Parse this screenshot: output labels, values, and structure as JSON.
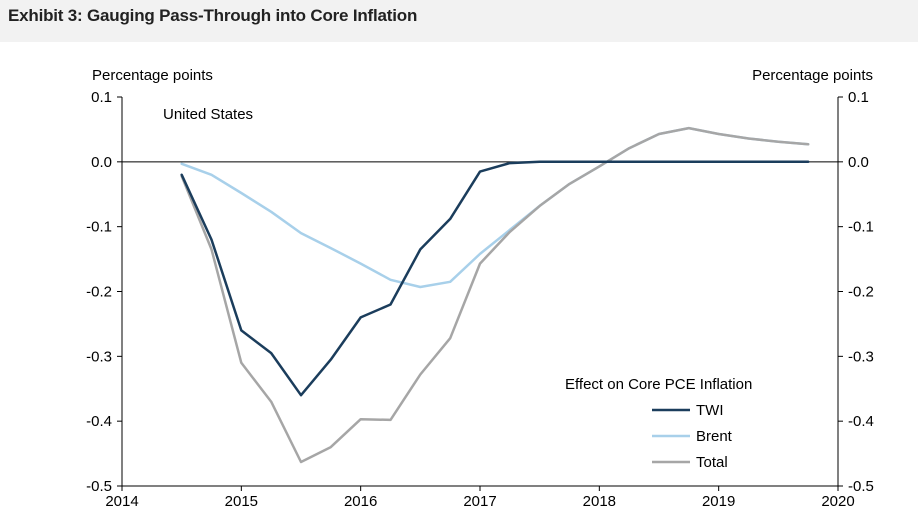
{
  "title": "Exhibit 3: Gauging Pass-Through into Core Inflation",
  "colors": {
    "twi": "#1b3d5c",
    "brent": "#a8d0ea",
    "total": "#a6a6a6",
    "axis": "#000000"
  },
  "chart_data": {
    "type": "line",
    "title": "Exhibit 3: Gauging Pass-Through into Core Inflation",
    "subtitle": "United States",
    "ylabel_left": "Percentage points",
    "ylabel_right": "Percentage points",
    "xlabel": "",
    "xlim": [
      2014,
      2020
    ],
    "ylim": [
      -0.5,
      0.1
    ],
    "xticks": [
      2014,
      2015,
      2016,
      2017,
      2018,
      2019,
      2020
    ],
    "yticks": [
      0.1,
      0.0,
      -0.1,
      -0.2,
      -0.3,
      -0.4,
      -0.5
    ],
    "ytick_labels": [
      "0.1",
      "0.0",
      "-0.1",
      "-0.2",
      "-0.3",
      "-0.4",
      "-0.5"
    ],
    "legend_title": "Effect on Core PCE Inflation",
    "legend_position": "bottom-right",
    "grid": false,
    "x": [
      2014.5,
      2014.75,
      2015.0,
      2015.25,
      2015.5,
      2015.75,
      2016.0,
      2016.25,
      2016.5,
      2016.75,
      2017.0,
      2017.25,
      2017.5,
      2017.75,
      2018.0,
      2018.25,
      2018.5,
      2018.75,
      2019.0,
      2019.25,
      2019.5,
      2019.75
    ],
    "series": [
      {
        "name": "TWI",
        "key": "twi",
        "values": [
          -0.02,
          -0.12,
          -0.26,
          -0.295,
          -0.36,
          -0.305,
          -0.24,
          -0.22,
          -0.135,
          -0.088,
          -0.015,
          -0.002,
          0.0,
          0.0,
          0.0,
          0.0,
          0.0,
          0.0,
          0.0,
          0.0,
          0.0,
          0.0
        ]
      },
      {
        "name": "Brent",
        "key": "brent",
        "values": [
          -0.003,
          -0.02,
          -0.048,
          -0.077,
          -0.11,
          -0.133,
          -0.157,
          -0.182,
          -0.193,
          -0.185,
          -0.142,
          -0.105,
          -0.068,
          -0.034,
          -0.007,
          0.021,
          0.043,
          0.052,
          0.043,
          0.036,
          0.031,
          0.027
        ]
      },
      {
        "name": "Total",
        "key": "total",
        "values": [
          -0.022,
          -0.135,
          -0.31,
          -0.37,
          -0.463,
          -0.44,
          -0.397,
          -0.398,
          -0.328,
          -0.272,
          -0.157,
          -0.108,
          -0.068,
          -0.034,
          -0.007,
          0.021,
          0.043,
          0.052,
          0.043,
          0.036,
          0.031,
          0.027
        ]
      }
    ]
  }
}
